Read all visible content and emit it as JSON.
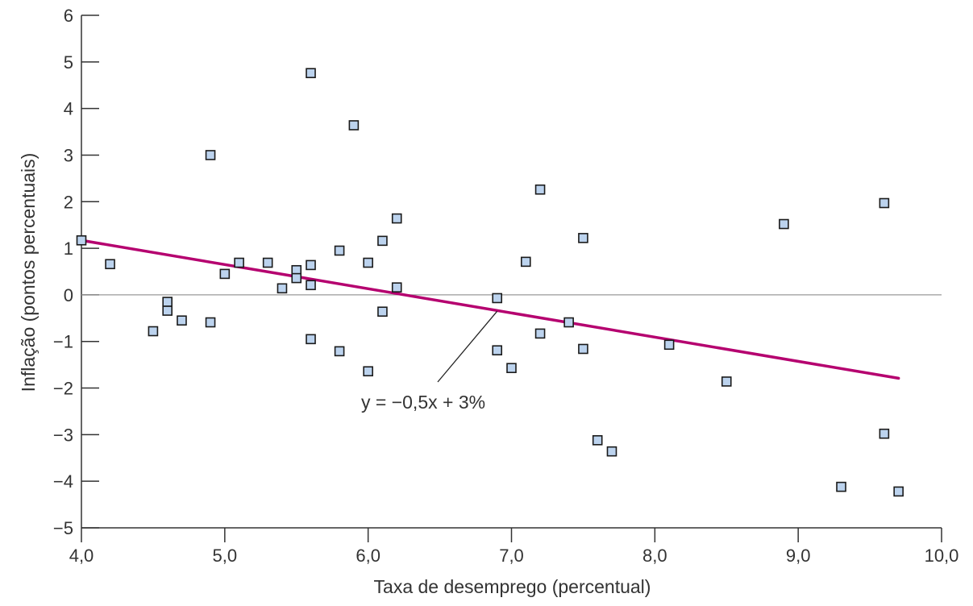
{
  "chart_data": {
    "type": "scatter",
    "title": "",
    "xlabel": "Taxa de desemprego (percentual)",
    "ylabel": "Inflação (pontos percentuais)",
    "xlim": [
      4.0,
      10.0
    ],
    "ylim": [
      -5,
      6
    ],
    "x_ticks": [
      4.0,
      5.0,
      6.0,
      7.0,
      8.0,
      9.0,
      10.0
    ],
    "x_tick_labels": [
      "4,0",
      "5,0",
      "6,0",
      "7,0",
      "8,0",
      "9,0",
      "10,0"
    ],
    "y_ticks": [
      6,
      5,
      4,
      3,
      2,
      1,
      0,
      -1,
      -2,
      -3,
      -4,
      -5
    ],
    "y_tick_labels": [
      "6",
      "5",
      "4",
      "3",
      "2",
      "1",
      "0",
      "−1",
      "−2",
      "−3",
      "−4",
      "−5"
    ],
    "zero_line": true,
    "points": [
      {
        "x": 4.0,
        "y": 1.17
      },
      {
        "x": 4.2,
        "y": 0.66
      },
      {
        "x": 4.5,
        "y": -0.78
      },
      {
        "x": 4.6,
        "y": -0.15
      },
      {
        "x": 4.6,
        "y": -0.34
      },
      {
        "x": 4.7,
        "y": -0.55
      },
      {
        "x": 4.9,
        "y": 3.0
      },
      {
        "x": 4.9,
        "y": -0.59
      },
      {
        "x": 5.0,
        "y": 0.45
      },
      {
        "x": 5.1,
        "y": 0.69
      },
      {
        "x": 5.3,
        "y": 0.69
      },
      {
        "x": 5.4,
        "y": 0.14
      },
      {
        "x": 5.5,
        "y": 0.53
      },
      {
        "x": 5.5,
        "y": 0.36
      },
      {
        "x": 5.6,
        "y": 4.76
      },
      {
        "x": 5.6,
        "y": 0.64
      },
      {
        "x": 5.6,
        "y": 0.21
      },
      {
        "x": 5.6,
        "y": -0.95
      },
      {
        "x": 5.8,
        "y": 0.95
      },
      {
        "x": 5.8,
        "y": -1.21
      },
      {
        "x": 5.9,
        "y": 3.64
      },
      {
        "x": 6.0,
        "y": 0.69
      },
      {
        "x": 6.0,
        "y": -1.64
      },
      {
        "x": 6.1,
        "y": 1.16
      },
      {
        "x": 6.1,
        "y": -0.36
      },
      {
        "x": 6.2,
        "y": 1.64
      },
      {
        "x": 6.2,
        "y": 0.16
      },
      {
        "x": 6.9,
        "y": -0.07
      },
      {
        "x": 6.9,
        "y": -1.19
      },
      {
        "x": 7.0,
        "y": -1.57
      },
      {
        "x": 7.1,
        "y": 0.71
      },
      {
        "x": 7.2,
        "y": 2.26
      },
      {
        "x": 7.2,
        "y": -0.83
      },
      {
        "x": 7.4,
        "y": -0.59
      },
      {
        "x": 7.5,
        "y": 1.22
      },
      {
        "x": 7.5,
        "y": -1.16
      },
      {
        "x": 7.6,
        "y": -3.12
      },
      {
        "x": 7.7,
        "y": -3.36
      },
      {
        "x": 8.1,
        "y": -1.07
      },
      {
        "x": 8.5,
        "y": -1.86
      },
      {
        "x": 8.9,
        "y": 1.52
      },
      {
        "x": 9.3,
        "y": -4.12
      },
      {
        "x": 9.6,
        "y": 1.97
      },
      {
        "x": 9.6,
        "y": -2.98
      },
      {
        "x": 9.7,
        "y": -4.22
      }
    ],
    "regression_line": {
      "x": [
        4.0,
        9.7
      ],
      "y": [
        1.17,
        -1.79
      ]
    },
    "annotation": {
      "text": "y = −0,5x + 3%",
      "points_to": {
        "x": 6.9,
        "y": -0.35
      }
    },
    "colors": {
      "marker_fill": "#bcd3ee",
      "marker_stroke": "#1a1a1a",
      "regression": "#b5006f",
      "axis": "#333333",
      "zero_line": "#9a9a9a"
    }
  }
}
